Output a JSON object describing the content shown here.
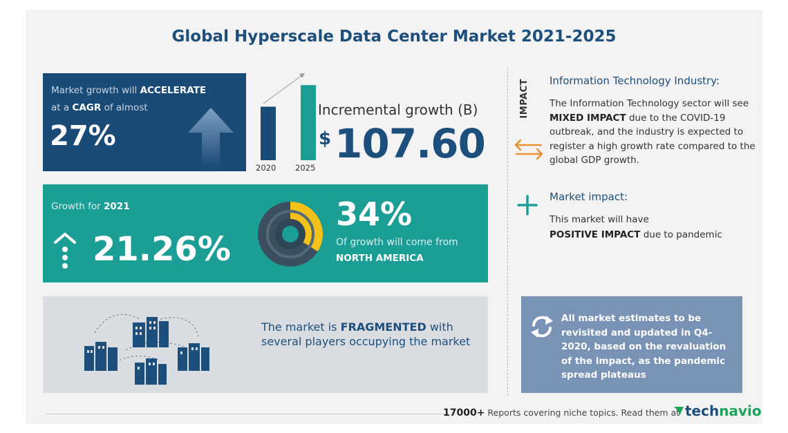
{
  "title": "Global Hyperscale Data Center Market 2021-2025",
  "cagr": {
    "line1_prefix": "Market growth will",
    "line1_bold": "ACCELERATE",
    "line2_prefix": "at a",
    "line2_bold": "CAGR",
    "line2_suffix": "of almost",
    "value": "27%"
  },
  "bars": {
    "label_2020": "2020",
    "label_2025": "2025",
    "value_2020": 0.62,
    "value_2025": 0.87
  },
  "incremental": {
    "label": "Incremental growth (B)",
    "currency": "$",
    "value": "107.60"
  },
  "growth": {
    "label_prefix": "Growth for",
    "label_year": "2021",
    "value": "21.26%"
  },
  "region": {
    "percent": "34%",
    "share": 0.34,
    "line1": "Of growth will come from",
    "line2": "NORTH AMERICA"
  },
  "fragmented": {
    "prefix": "The market is",
    "bold": "FRAGMENTED",
    "rest": "with several players occupying the market"
  },
  "impact_label": "IMPACT",
  "it_industry": {
    "heading": "Information Technology Industry:",
    "body_prefix": "The Information Technology sector will see",
    "body_bold": "MIXED IMPACT",
    "body_suffix": "due to the COVID-19 outbreak, and the industry is expected to register a high growth rate compared to the global GDP growth."
  },
  "market_impact": {
    "heading": "Market impact:",
    "body_prefix": "This market will have",
    "body_bold": "POSITIVE IMPACT",
    "body_suffix": "due to pandemic"
  },
  "note": "All market estimates to be revisited and updated in Q4-2020, based on the revaluation of the impact, as the pandemic spread plateaus",
  "footer": {
    "count": "17000+",
    "text": "Reports covering niche topics. Read them at",
    "logo_part1": "tech",
    "logo_part2": "navio"
  },
  "colors": {
    "navy": "#1a4a76",
    "teal": "#1a9e96",
    "yellow": "#f2c21b",
    "orange": "#e8922e",
    "slate": "#7893b5"
  }
}
